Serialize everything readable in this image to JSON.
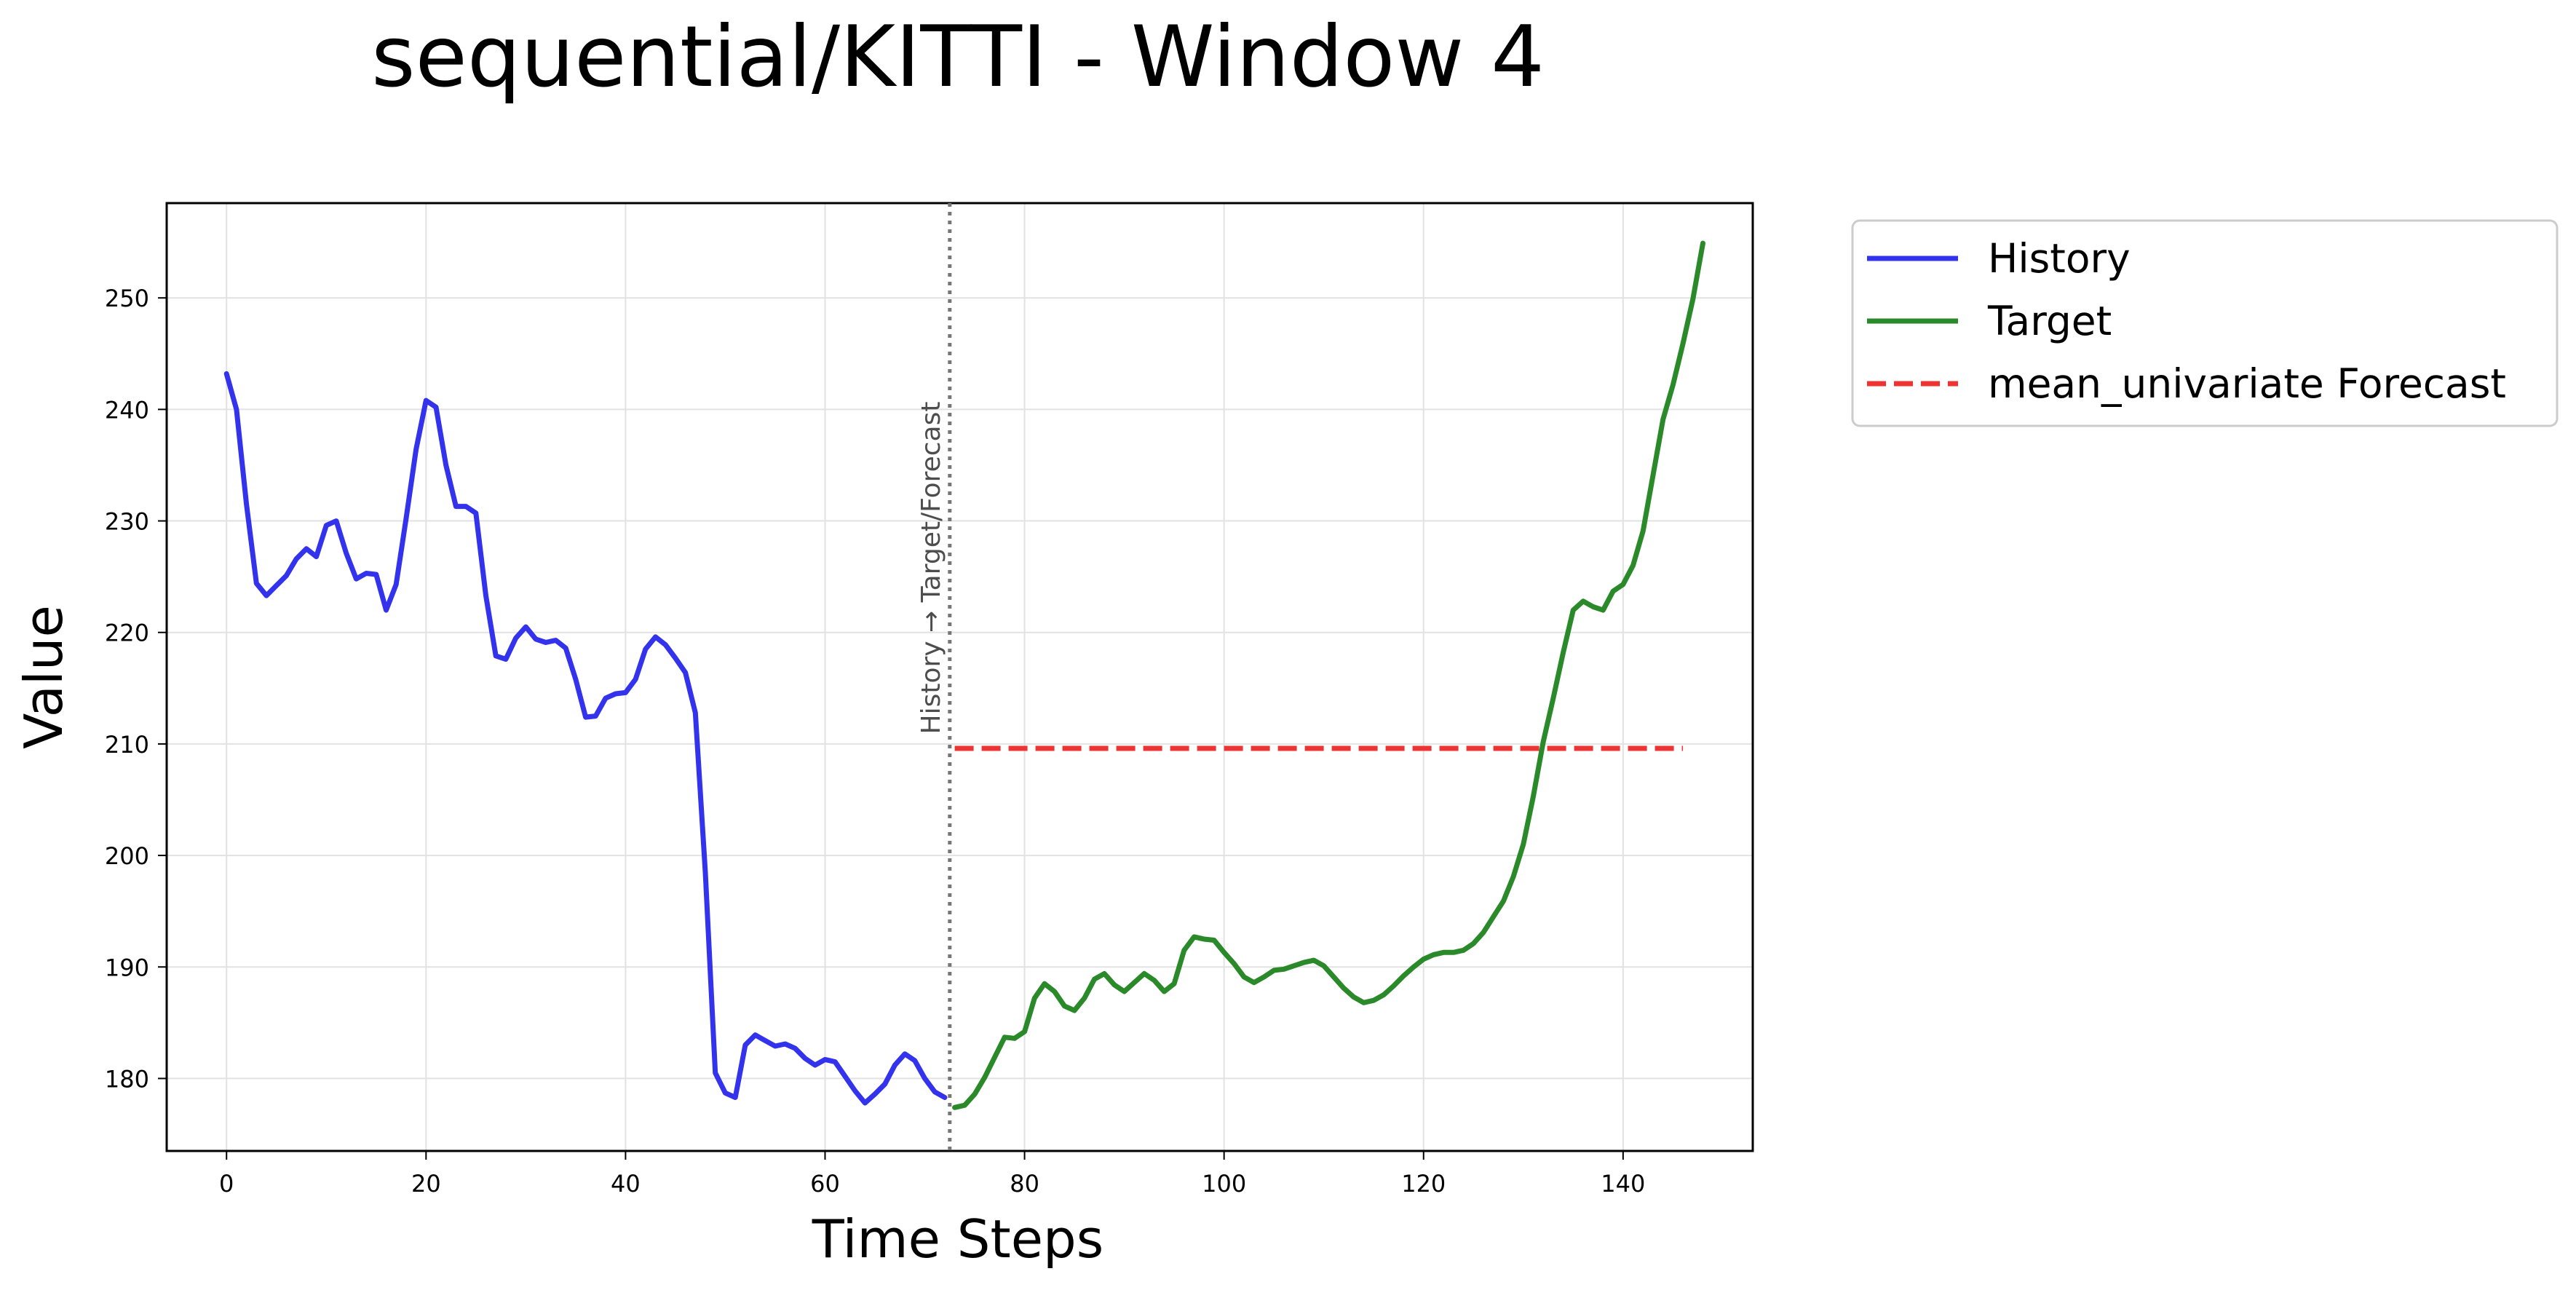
{
  "chart_data": {
    "type": "line",
    "title": "sequential/KITTI - Window 4",
    "xlabel": "Time Steps",
    "ylabel": "Value",
    "xlim": [
      -6,
      153
    ],
    "ylim": [
      173.5,
      258.5
    ],
    "xticks": [
      0,
      20,
      40,
      60,
      80,
      100,
      120,
      140
    ],
    "yticks": [
      180,
      190,
      200,
      210,
      220,
      230,
      240,
      250
    ],
    "grid": true,
    "legend_position": "outside-right",
    "split": {
      "x": 72.5,
      "label": "History → Target/Forecast"
    },
    "series": [
      {
        "name": "History",
        "color": "#3333ee",
        "style": "solid",
        "x_start": 0,
        "values": [
          243.2,
          240.0,
          231.5,
          224.4,
          223.3,
          224.2,
          225.1,
          226.6,
          227.5,
          226.8,
          229.6,
          230.0,
          227.1,
          224.8,
          225.3,
          225.2,
          222.0,
          224.3,
          230.2,
          236.4,
          240.8,
          240.2,
          235.0,
          231.3,
          231.3,
          230.7,
          223.3,
          217.9,
          217.6,
          219.5,
          220.5,
          219.4,
          219.1,
          219.3,
          218.6,
          215.8,
          212.4,
          212.5,
          214.1,
          214.5,
          214.6,
          215.8,
          218.5,
          219.6,
          218.9,
          217.7,
          216.4,
          212.8,
          198.5,
          180.5,
          178.7,
          178.3,
          183.0,
          183.9,
          183.4,
          182.9,
          183.1,
          182.7,
          181.8,
          181.2,
          181.7,
          181.5,
          180.2,
          178.9,
          177.8,
          178.6,
          179.5,
          181.2,
          182.2,
          181.6,
          180.0,
          178.8,
          178.3
        ]
      },
      {
        "name": "Target",
        "color": "#2a8a2a",
        "style": "solid",
        "x_start": 73,
        "values": [
          177.4,
          177.6,
          178.6,
          180.1,
          181.9,
          183.7,
          183.6,
          184.2,
          187.2,
          188.5,
          187.8,
          186.5,
          186.1,
          187.2,
          188.9,
          189.4,
          188.4,
          187.8,
          188.6,
          189.4,
          188.8,
          187.8,
          188.5,
          191.5,
          192.7,
          192.5,
          192.4,
          191.3,
          190.3,
          189.1,
          188.6,
          189.1,
          189.7,
          189.8,
          190.1,
          190.4,
          190.6,
          190.1,
          189.1,
          188.1,
          187.3,
          186.8,
          187.0,
          187.5,
          188.3,
          189.2,
          190.0,
          190.7,
          191.1,
          191.3,
          191.3,
          191.5,
          192.1,
          193.1,
          194.5,
          195.9,
          198.1,
          201.0,
          205.3,
          210.2,
          214.1,
          218.2,
          222.0,
          222.8,
          222.3,
          222.0,
          223.7,
          224.3,
          226.0,
          229.1,
          234.1,
          239.1,
          242.2,
          245.9,
          249.9,
          254.9
        ]
      },
      {
        "name": "mean_univariate Forecast",
        "color": "#ee3333",
        "style": "dashed",
        "x_start": 73,
        "x_end": 146,
        "constant": 209.6
      }
    ]
  }
}
